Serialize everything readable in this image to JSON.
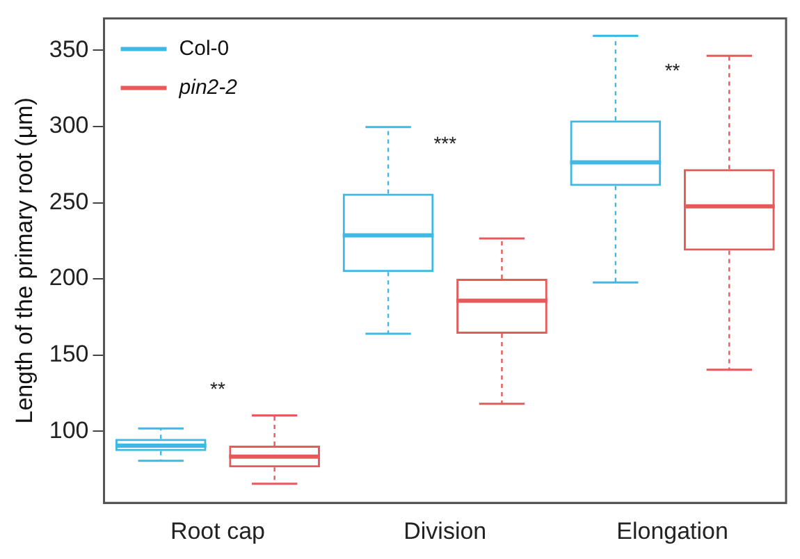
{
  "chart_data": {
    "type": "box",
    "ylabel": "Length of the primary root (μm)",
    "categories": [
      "Root cap",
      "Division",
      "Elongation"
    ],
    "series": [
      {
        "name": "Col-0",
        "color": "#3fb8e3",
        "boxes": [
          {
            "low": 80.6,
            "q1": 87,
            "median": 90.5,
            "q3": 95,
            "high": 101.8
          },
          {
            "low": 164,
            "q1": 204.5,
            "median": 228.6,
            "q3": 256,
            "high": 299.7
          },
          {
            "low": 197.6,
            "q1": 261,
            "median": 276.5,
            "q3": 304,
            "high": 359.5
          }
        ]
      },
      {
        "name": "pin2-2",
        "color": "#e85a5a",
        "boxes": [
          {
            "low": 65.5,
            "q1": 76.2,
            "median": 83.3,
            "q3": 90.5,
            "high": 110.4
          },
          {
            "low": 118,
            "q1": 164,
            "median": 185.7,
            "q3": 200,
            "high": 226.5
          },
          {
            "low": 140.4,
            "q1": 218.5,
            "median": 247.6,
            "q3": 272,
            "high": 346.4
          }
        ]
      }
    ],
    "ylim": [
      53,
      371
    ],
    "yticks": [
      100,
      150,
      200,
      250,
      300,
      350
    ],
    "grid": false,
    "legend": "top left",
    "annotations": [
      "**",
      "***",
      "**"
    ]
  }
}
